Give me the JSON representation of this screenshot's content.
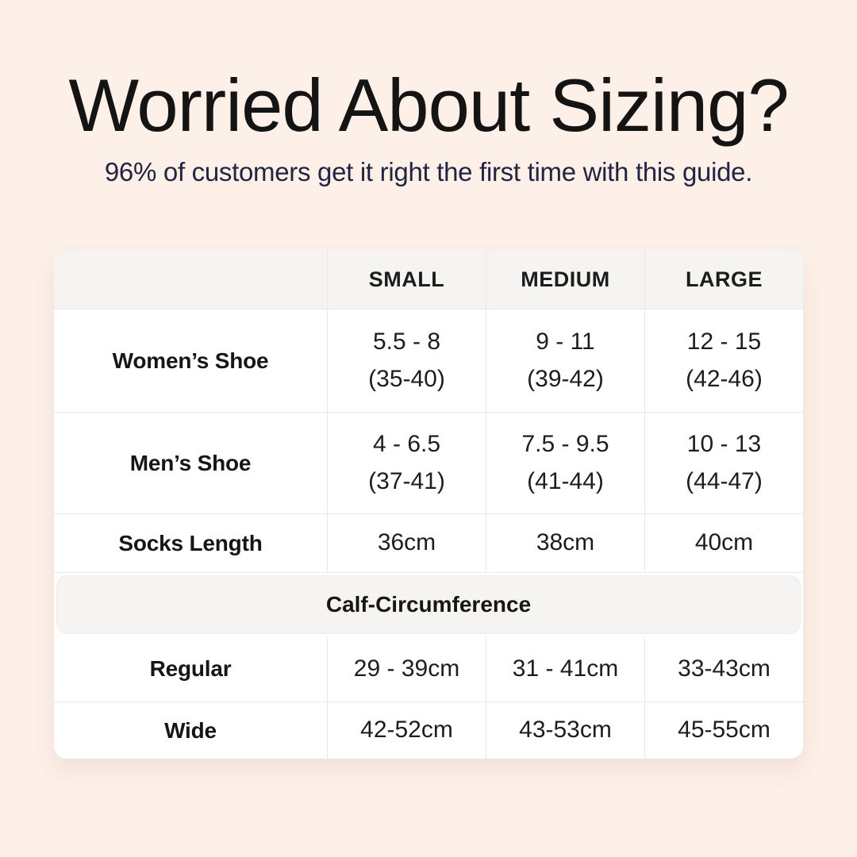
{
  "page": {
    "title": "Worried About Sizing?",
    "subtitle": "96% of customers get it right the first time with this guide."
  },
  "colors": {
    "background": "#fcf0e8",
    "panel": "#ffffff",
    "header_band": "#f5f4f2",
    "border": "#e9e8e6",
    "title_text": "#141414",
    "subtitle_text": "#232342",
    "table_text": "#1d1d1d"
  },
  "size_table": {
    "column_headers": [
      "",
      "SMALL",
      "MEDIUM",
      "LARGE"
    ],
    "shoe_rows": [
      {
        "label": "Women’s Shoe",
        "cells": [
          {
            "line1": "5.5 - 8",
            "line2": "(35-40)"
          },
          {
            "line1": "9 - 11",
            "line2": "(39-42)"
          },
          {
            "line1": "12 - 15",
            "line2": "(42-46)"
          }
        ]
      },
      {
        "label": "Men’s Shoe",
        "cells": [
          {
            "line1": "4 - 6.5",
            "line2": "(37-41)"
          },
          {
            "line1": "7.5 - 9.5",
            "line2": "(41-44)"
          },
          {
            "line1": "10 - 13",
            "line2": "(44-47)"
          }
        ]
      },
      {
        "label": "Socks Length",
        "cells": [
          {
            "line1": "36cm",
            "line2": ""
          },
          {
            "line1": "38cm",
            "line2": ""
          },
          {
            "line1": "40cm",
            "line2": ""
          }
        ]
      }
    ],
    "section_header": "Calf-Circumference",
    "calf_rows": [
      {
        "label": "Regular",
        "cells": [
          "29 - 39cm",
          "31 - 41cm",
          "33-43cm"
        ]
      },
      {
        "label": "Wide",
        "cells": [
          "42-52cm",
          "43-53cm",
          "45-55cm"
        ]
      }
    ]
  },
  "chart_data": {
    "type": "table",
    "title": "Worried About Sizing?",
    "subtitle": "96% of customers get it right the first time with this guide.",
    "columns": [
      "",
      "SMALL",
      "MEDIUM",
      "LARGE"
    ],
    "rows": [
      [
        "Women’s Shoe",
        "5.5 - 8 (35-40)",
        "9 - 11 (39-42)",
        "12 - 15 (42-46)"
      ],
      [
        "Men’s Shoe",
        "4 - 6.5 (37-41)",
        "7.5 - 9.5 (41-44)",
        "10 - 13 (44-47)"
      ],
      [
        "Socks Length",
        "36cm",
        "38cm",
        "40cm"
      ],
      [
        "Calf-Circumference",
        "",
        "",
        ""
      ],
      [
        "Regular",
        "29 - 39cm",
        "31 - 41cm",
        "33-43cm"
      ],
      [
        "Wide",
        "42-52cm",
        "43-53cm",
        "45-55cm"
      ]
    ]
  }
}
